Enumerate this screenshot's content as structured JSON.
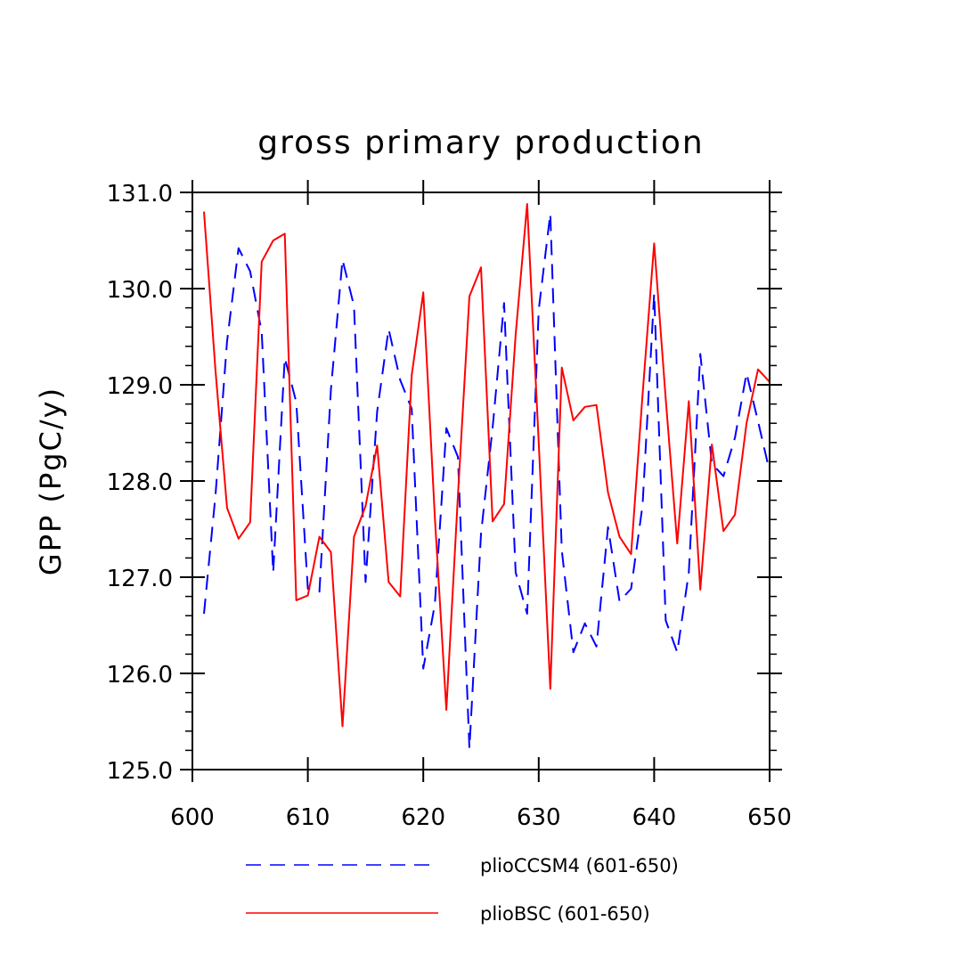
{
  "chart_data": {
    "type": "line",
    "title": "gross primary production",
    "xlabel": "",
    "ylabel": "GPP  (PgC/y)",
    "xlim": [
      600,
      650
    ],
    "ylim": [
      125.0,
      131.0
    ],
    "xticks": [
      600,
      610,
      620,
      630,
      640,
      650
    ],
    "xtick_labels": [
      "600",
      "610",
      "620",
      "630",
      "640",
      "650"
    ],
    "yticks": [
      125.0,
      126.0,
      127.0,
      128.0,
      129.0,
      130.0,
      131.0
    ],
    "ytick_labels": [
      "125.0",
      "126.0",
      "127.0",
      "128.0",
      "129.0",
      "130.0",
      "131.0"
    ],
    "grid": false,
    "legend_position": "bottom",
    "x": [
      601,
      602,
      603,
      604,
      605,
      606,
      607,
      608,
      609,
      610,
      611,
      612,
      613,
      614,
      615,
      616,
      617,
      618,
      619,
      620,
      621,
      622,
      623,
      624,
      625,
      626,
      627,
      628,
      629,
      630,
      631,
      632,
      633,
      634,
      635,
      636,
      637,
      638,
      639,
      640,
      641,
      642,
      643,
      644,
      645,
      646,
      647,
      648,
      649,
      650
    ],
    "series": [
      {
        "name": "plioCCSM4 (601-650)",
        "color": "#0000ff",
        "dash": "dashed",
        "values": [
          126.62,
          127.85,
          129.45,
          130.42,
          130.18,
          129.55,
          127.05,
          129.28,
          128.82,
          126.88,
          126.85,
          128.95,
          130.3,
          129.82,
          126.95,
          128.72,
          129.58,
          129.05,
          128.75,
          126.05,
          126.72,
          128.55,
          128.25,
          125.22,
          127.45,
          128.55,
          129.85,
          127.05,
          126.62,
          129.78,
          130.78,
          127.28,
          126.22,
          126.52,
          126.28,
          127.52,
          126.75,
          126.88,
          127.75,
          129.95,
          126.55,
          126.22,
          127.05,
          129.32,
          128.18,
          128.05,
          128.45,
          129.12,
          128.62,
          128.1
        ]
      },
      {
        "name": "plioBSC (601-650)",
        "color": "#ff0000",
        "dash": "solid",
        "values": [
          130.8,
          129.15,
          127.72,
          127.4,
          127.57,
          130.28,
          130.5,
          130.57,
          126.76,
          126.81,
          127.42,
          127.26,
          125.45,
          127.42,
          127.74,
          128.37,
          126.95,
          126.8,
          129.1,
          129.96,
          127.62,
          125.62,
          127.85,
          129.92,
          130.22,
          127.58,
          127.76,
          129.52,
          130.88,
          128.4,
          125.84,
          129.18,
          128.63,
          128.77,
          128.79,
          127.88,
          127.42,
          127.24,
          128.9,
          130.47,
          128.85,
          127.35,
          128.83,
          126.87,
          128.38,
          127.48,
          127.65,
          128.6,
          129.16,
          129.03
        ]
      }
    ]
  }
}
